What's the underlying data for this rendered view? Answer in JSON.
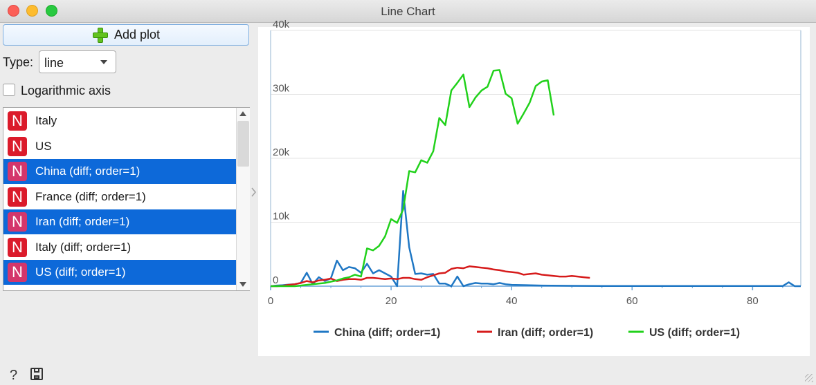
{
  "window": {
    "title": "Line Chart"
  },
  "add_plot": {
    "label": "Add plot",
    "icon": "plus-icon"
  },
  "type_field": {
    "label": "Type:",
    "value": "line"
  },
  "log_axis": {
    "label": "Logarithmic axis",
    "checked": false
  },
  "variables": [
    {
      "label": "Italy",
      "icon": "N",
      "selected": false
    },
    {
      "label": "US",
      "icon": "N",
      "selected": false
    },
    {
      "label": "China (diff; order=1)",
      "icon": "N",
      "selected": true
    },
    {
      "label": "France (diff; order=1)",
      "icon": "N",
      "selected": false
    },
    {
      "label": "Iran (diff; order=1)",
      "icon": "N",
      "selected": true
    },
    {
      "label": "Italy (diff; order=1)",
      "icon": "N",
      "selected": false
    },
    {
      "label": "US (diff; order=1)",
      "icon": "N",
      "selected": true
    }
  ],
  "footer": {
    "help_icon": "?",
    "save_icon": "save-icon"
  },
  "colors": {
    "China": "#1f77c4",
    "Iran": "#d61b1b",
    "US": "#21d11b",
    "selection": "#0d69d9"
  },
  "chart_data": {
    "type": "line",
    "title": "",
    "xlabel": "",
    "ylabel": "",
    "xlim": [
      0,
      88
    ],
    "ylim": [
      0,
      40000
    ],
    "xticks": [
      0,
      20,
      40,
      60,
      80
    ],
    "yticks": [
      0,
      10000,
      20000,
      30000,
      40000
    ],
    "ytick_labels": [
      "0",
      "10k",
      "20k",
      "30k",
      "40k"
    ],
    "grid": "horizontal",
    "legend": "bottom",
    "series": [
      {
        "name": "China (diff; order=1)",
        "color": "#1f77c4",
        "x": [
          0,
          1,
          2,
          3,
          4,
          5,
          6,
          7,
          8,
          9,
          10,
          11,
          12,
          13,
          14,
          15,
          16,
          17,
          18,
          19,
          20,
          21,
          22,
          23,
          24,
          25,
          26,
          27,
          28,
          29,
          30,
          31,
          32,
          33,
          34,
          35,
          36,
          37,
          38,
          39,
          40,
          45,
          50,
          55,
          60,
          65,
          70,
          75,
          80,
          85,
          86,
          87,
          88
        ],
        "y": [
          0,
          100,
          150,
          250,
          300,
          500,
          2100,
          300,
          1400,
          800,
          1200,
          4000,
          2500,
          3000,
          2800,
          2100,
          3500,
          2000,
          2500,
          2000,
          1500,
          0,
          14900,
          6100,
          1900,
          2000,
          1800,
          1900,
          400,
          400,
          0,
          1500,
          0,
          300,
          500,
          400,
          400,
          300,
          500,
          300,
          200,
          100,
          50,
          30,
          30,
          20,
          20,
          20,
          20,
          20,
          600,
          0,
          0
        ]
      },
      {
        "name": "Iran (diff; order=1)",
        "color": "#d61b1b",
        "x": [
          0,
          1,
          2,
          3,
          4,
          5,
          6,
          7,
          8,
          9,
          10,
          11,
          12,
          13,
          14,
          15,
          16,
          17,
          18,
          19,
          20,
          21,
          22,
          23,
          24,
          25,
          26,
          27,
          28,
          29,
          30,
          31,
          32,
          33,
          34,
          35,
          36,
          37,
          38,
          39,
          40,
          41,
          42,
          43,
          44,
          45,
          46,
          47,
          48,
          49,
          50,
          51,
          52,
          53
        ],
        "y": [
          0,
          0,
          50,
          200,
          300,
          500,
          800,
          600,
          900,
          1000,
          1200,
          800,
          1000,
          1100,
          1100,
          1000,
          1300,
          1300,
          1200,
          1100,
          1200,
          1100,
          1300,
          1300,
          1100,
          1000,
          1400,
          1700,
          2000,
          2100,
          2700,
          2900,
          2800,
          3100,
          3000,
          2900,
          2800,
          2600,
          2500,
          2300,
          2200,
          2100,
          1800,
          1900,
          2000,
          1800,
          1700,
          1600,
          1500,
          1500,
          1600,
          1500,
          1400,
          1300
        ]
      },
      {
        "name": "US (diff; order=1)",
        "color": "#21d11b",
        "x": [
          0,
          1,
          2,
          3,
          4,
          5,
          6,
          7,
          8,
          9,
          10,
          11,
          12,
          13,
          14,
          15,
          16,
          17,
          18,
          19,
          20,
          21,
          22,
          23,
          24,
          25,
          26,
          27,
          28,
          29,
          30,
          31,
          32,
          33,
          34,
          35,
          36,
          37,
          38,
          39,
          40,
          41,
          42,
          43,
          44,
          45,
          46,
          47
        ],
        "y": [
          0,
          0,
          0,
          0,
          0,
          100,
          200,
          300,
          400,
          500,
          700,
          900,
          1200,
          1400,
          1800,
          1500,
          5900,
          5600,
          6300,
          7800,
          10500,
          9900,
          12000,
          18000,
          17800,
          19700,
          19300,
          21100,
          26300,
          25200,
          30600,
          31800,
          33100,
          28000,
          29500,
          30600,
          31200,
          33700,
          33800,
          30100,
          29400,
          25400,
          27000,
          28700,
          31300,
          32000,
          32200,
          26700
        ]
      }
    ]
  }
}
